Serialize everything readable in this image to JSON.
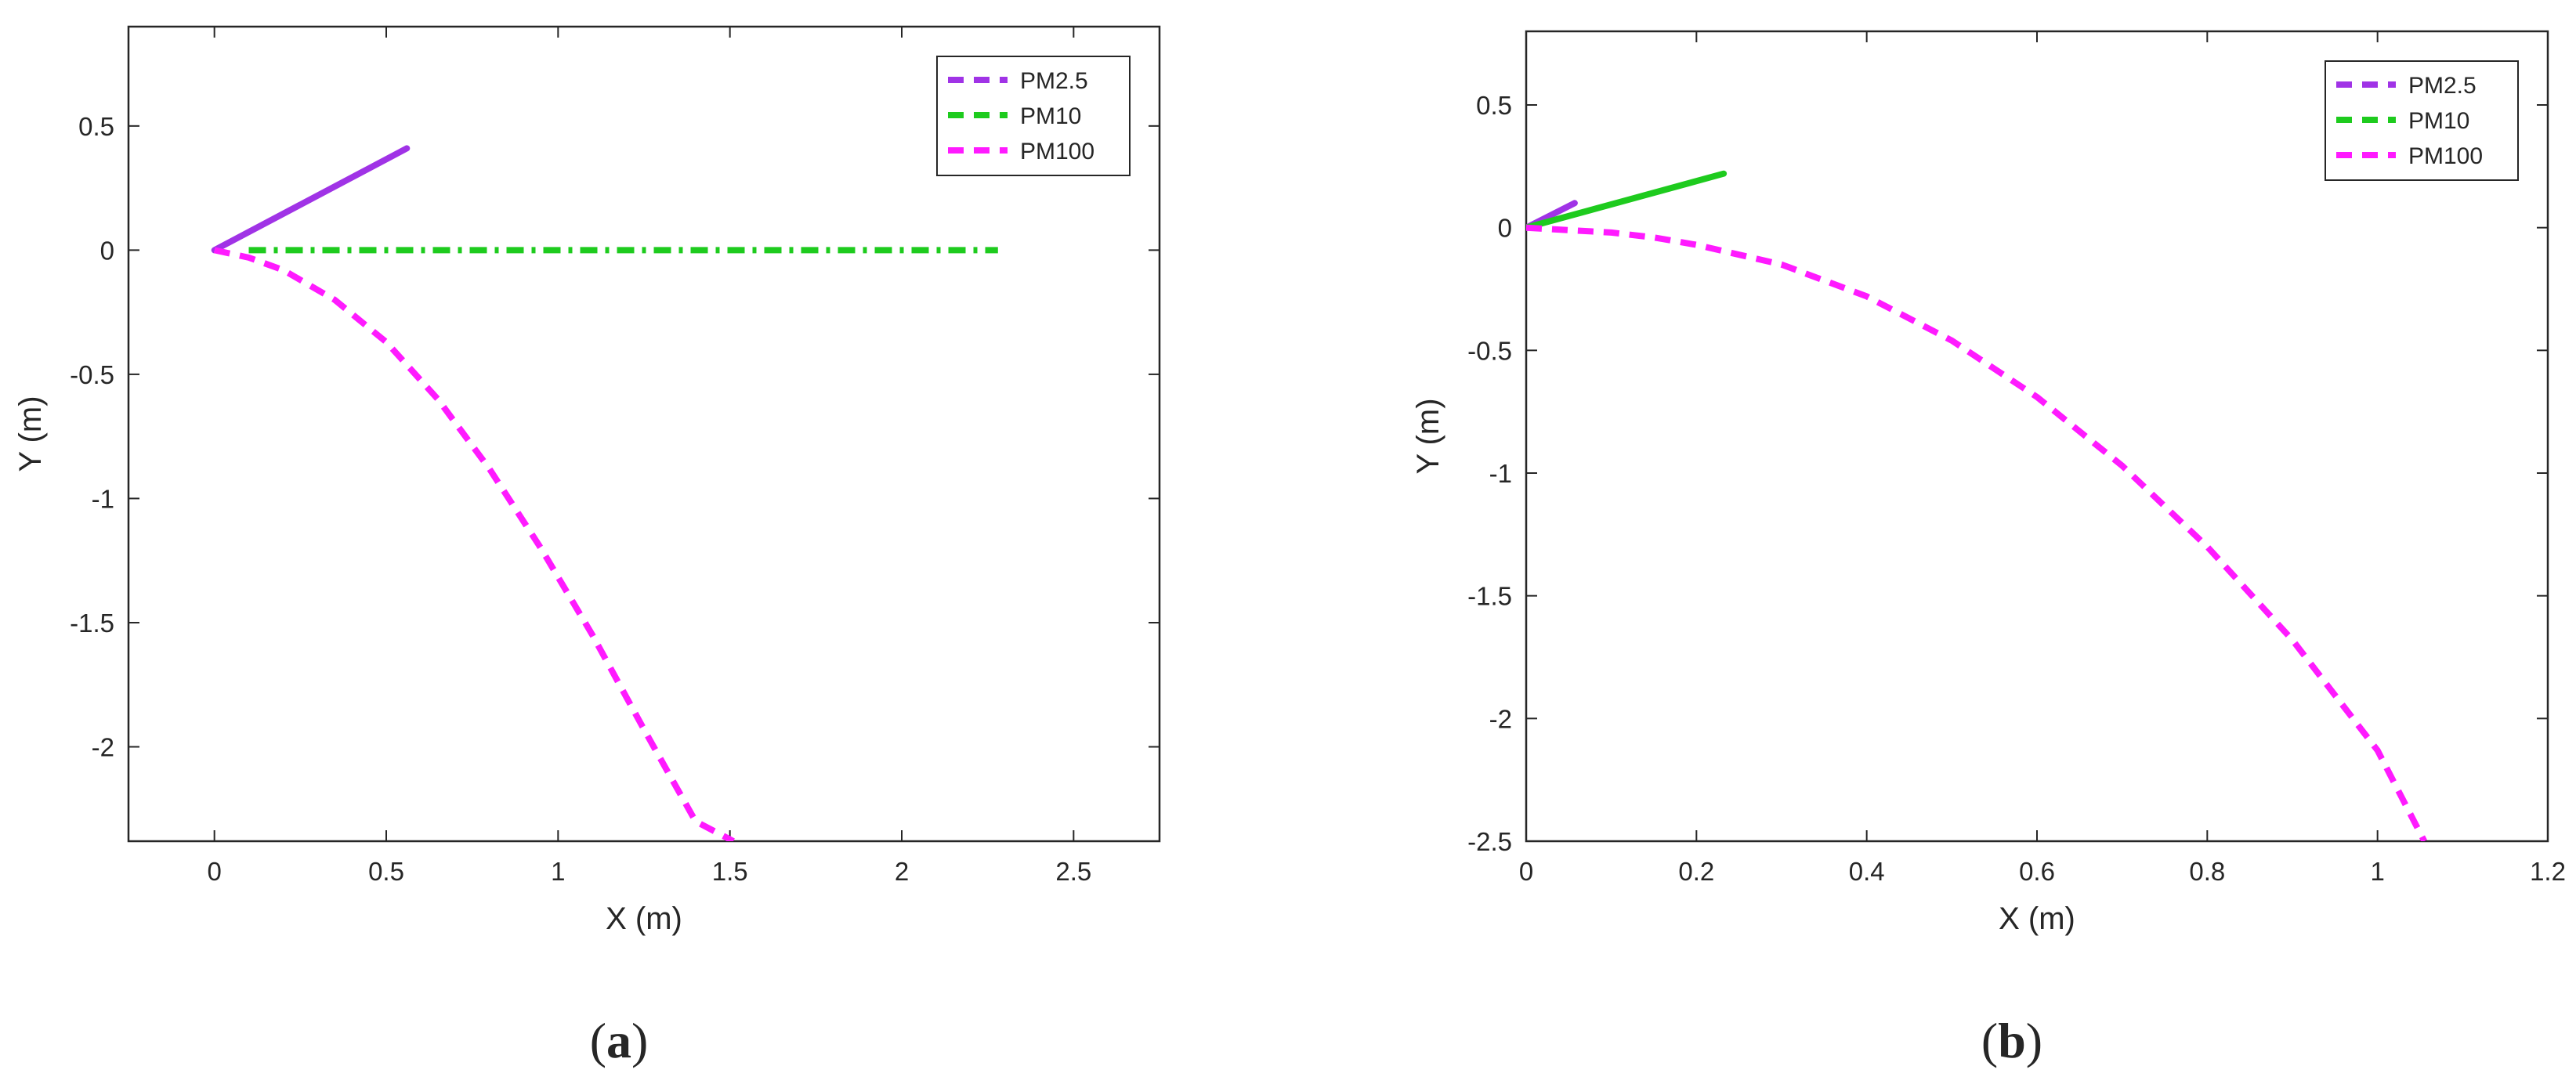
{
  "colors": {
    "pm25": "#a033e6",
    "pm10": "#1ecb1e",
    "pm100": "#ff1aff",
    "axis": "#262626"
  },
  "chart_data": [
    {
      "panel_label": "a",
      "type": "line",
      "xlabel": "X (m)",
      "ylabel": "Y (m)",
      "xlim": [
        -0.25,
        2.75
      ],
      "ylim": [
        -2.38,
        0.9
      ],
      "xticks": [
        0,
        0.5,
        1,
        1.5,
        2,
        2.5
      ],
      "xtick_labels": [
        "0",
        "0.5",
        "1",
        "1.5",
        "2",
        "2.5"
      ],
      "yticks": [
        0.5,
        0,
        -0.5,
        -1,
        -1.5,
        -2
      ],
      "ytick_labels": [
        "0.5",
        "0",
        "-0.5",
        "-1",
        "-1.5",
        "-2"
      ],
      "legend_position": "top-right",
      "grid": false,
      "series": [
        {
          "name": "PM2.5",
          "color": "#a033e6",
          "style": "solid",
          "legend_style": "dashed",
          "x": [
            0,
            0.56
          ],
          "y": [
            0,
            0.41
          ]
        },
        {
          "name": "PM10",
          "color": "#1ecb1e",
          "style": "dashdot",
          "legend_style": "dashed",
          "x": [
            0.1,
            2.28
          ],
          "y": [
            0,
            0
          ]
        },
        {
          "name": "PM100",
          "color": "#ff1aff",
          "style": "dashed",
          "legend_style": "dashed",
          "x": [
            0,
            0.1,
            0.2,
            0.35,
            0.5,
            0.65,
            0.8,
            0.95,
            1.1,
            1.25,
            1.4,
            1.51
          ],
          "y": [
            0,
            -0.03,
            -0.08,
            -0.2,
            -0.37,
            -0.6,
            -0.88,
            -1.2,
            -1.55,
            -1.93,
            -2.3,
            -2.38
          ]
        }
      ]
    },
    {
      "panel_label": "b",
      "type": "line",
      "xlabel": "X (m)",
      "ylabel": "Y (m)",
      "xlim": [
        0,
        1.2
      ],
      "ylim": [
        -2.5,
        0.8
      ],
      "xticks": [
        0,
        0.2,
        0.4,
        0.6,
        0.8,
        1,
        1.2
      ],
      "xtick_labels": [
        "0",
        "0.2",
        "0.4",
        "0.6",
        "0.8",
        "1",
        "1.2"
      ],
      "yticks": [
        0.5,
        0,
        -0.5,
        -1,
        -1.5,
        -2,
        -2.5
      ],
      "ytick_labels": [
        "0.5",
        "0",
        "-0.5",
        "-1",
        "-1.5",
        "-2",
        "-2.5"
      ],
      "legend_position": "top-right",
      "grid": false,
      "series": [
        {
          "name": "PM2.5",
          "color": "#a033e6",
          "style": "solid",
          "legend_style": "dashed",
          "x": [
            0,
            0.057
          ],
          "y": [
            0,
            0.1
          ]
        },
        {
          "name": "PM10",
          "color": "#1ecb1e",
          "style": "solid",
          "legend_style": "dashed",
          "x": [
            0,
            0.232
          ],
          "y": [
            0,
            0.22
          ]
        },
        {
          "name": "PM100",
          "color": "#ff1aff",
          "style": "dashed",
          "legend_style": "dashed",
          "x": [
            0,
            0.05,
            0.1,
            0.15,
            0.2,
            0.3,
            0.4,
            0.5,
            0.6,
            0.7,
            0.8,
            0.9,
            1.0,
            1.055
          ],
          "y": [
            0,
            -0.01,
            -0.02,
            -0.04,
            -0.07,
            -0.15,
            -0.28,
            -0.46,
            -0.69,
            -0.97,
            -1.3,
            -1.68,
            -2.13,
            -2.5
          ]
        }
      ]
    }
  ]
}
